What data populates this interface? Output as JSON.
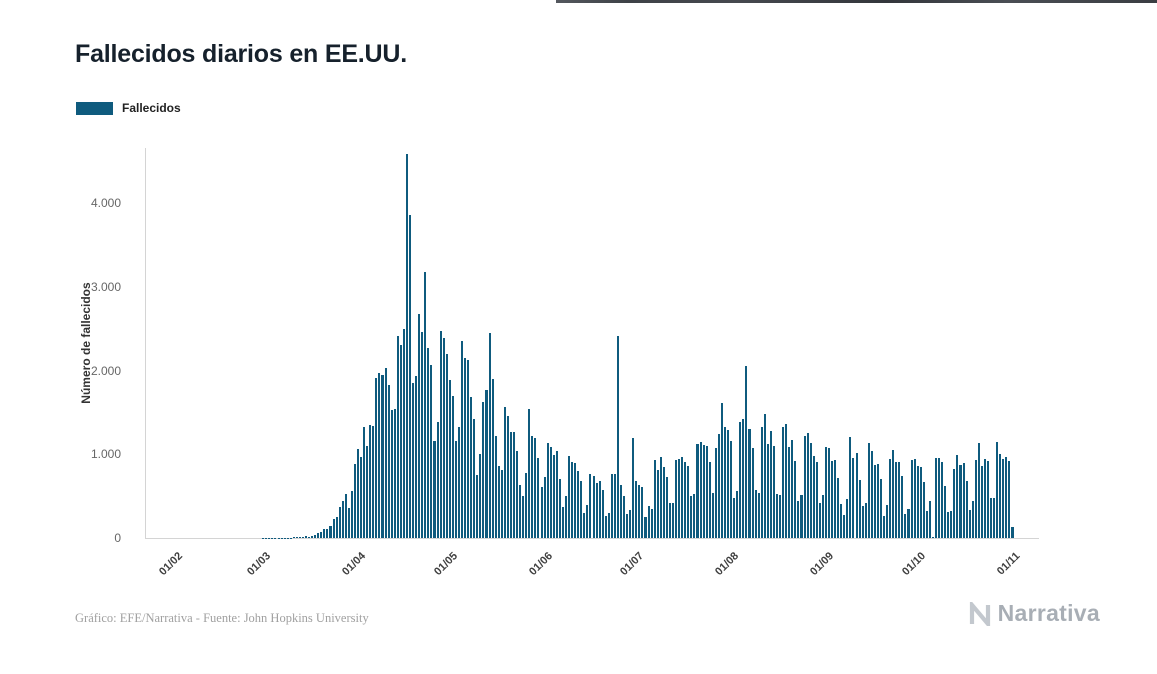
{
  "page": {
    "title": "Fallecidos diarios en EE.UU.",
    "credit": "Gráfico: EFE/Narrativa - Fuente: John Hopkins University",
    "brand": "Narrativa"
  },
  "legend": {
    "label": "Fallecidos",
    "color": "#0f5b7e"
  },
  "chart_data": {
    "type": "bar",
    "title": "Fallecidos diarios en EE.UU.",
    "ylabel": "Número de fallecidos",
    "xlabel": "",
    "grid": false,
    "legend_position": "top-left",
    "ylim": [
      0,
      4657
    ],
    "x_domain_days": 292,
    "y_ticks": [
      {
        "value": 0,
        "label": "0"
      },
      {
        "value": 1000,
        "label": "1.000"
      },
      {
        "value": 2000,
        "label": "2.000"
      },
      {
        "value": 3000,
        "label": "3.000"
      },
      {
        "value": 4000,
        "label": "4.000"
      }
    ],
    "x_ticks": [
      {
        "index": 9,
        "label": "01/02"
      },
      {
        "index": 38,
        "label": "01/03"
      },
      {
        "index": 69,
        "label": "01/04"
      },
      {
        "index": 99,
        "label": "01/05"
      },
      {
        "index": 130,
        "label": "01/06"
      },
      {
        "index": 160,
        "label": "01/07"
      },
      {
        "index": 191,
        "label": "01/08"
      },
      {
        "index": 222,
        "label": "01/09"
      },
      {
        "index": 252,
        "label": "01/10"
      },
      {
        "index": 283,
        "label": "01/11"
      }
    ],
    "series": [
      {
        "name": "Fallecidos",
        "color": "#0f5b7e",
        "values": [
          0,
          0,
          0,
          0,
          0,
          0,
          0,
          0,
          0,
          0,
          0,
          0,
          0,
          0,
          0,
          0,
          0,
          0,
          0,
          0,
          0,
          0,
          0,
          0,
          0,
          0,
          0,
          0,
          0,
          0,
          0,
          0,
          0,
          0,
          0,
          0,
          0,
          0,
          1,
          1,
          2,
          3,
          2,
          3,
          4,
          5,
          4,
          6,
          8,
          10,
          12,
          18,
          22,
          18,
          26,
          41,
          57,
          68,
          110,
          113,
          140,
          225,
          247,
          372,
          445,
          525,
          363,
          558,
          880,
          1059,
          968,
          1320,
          1104,
          1344,
          1342,
          1906,
          1973,
          1943,
          2035,
          1830,
          1528,
          1539,
          2408,
          2299,
          2494,
          4591,
          3857,
          1856,
          1939,
          2674,
          2458,
          3179,
          2266,
          2065,
          1157,
          1384,
          2470,
          2390,
          2201,
          1883,
          1691,
          1154,
          1324,
          2350,
          2144,
          2129,
          1687,
          1422,
          750,
          1008,
          1630,
          1772,
          2446,
          1898,
          1218,
          865,
          808,
          1568,
          1461,
          1263,
          1260,
          1035,
          638,
          500,
          774,
          1535,
          1223,
          1193,
          960,
          605,
          730,
          1134,
          1083,
          995,
          1036,
          709,
          373,
          497,
          979,
          906,
          892,
          802,
          683,
          302,
          389,
          770,
          740,
          655,
          683,
          577,
          268,
          294,
          767,
          765,
          2412,
          637,
          504,
          287,
          334,
          1199,
          684,
          636,
          614,
          254,
          384,
          352,
          933,
          811,
          964,
          849,
          730,
          421,
          417,
          937,
          941,
          963,
          904,
          860,
          504,
          528,
          1118,
          1143,
          1108,
          1096,
          906,
          532,
          1069,
          1240,
          1607,
          1320,
          1284,
          1157,
          474,
          557,
          1389,
          1423,
          2060,
          1300,
          1069,
          568,
          541,
          1324,
          1486,
          1128,
          1272,
          1096,
          526,
          512,
          1324,
          1356,
          1090,
          1172,
          924,
          441,
          512,
          1222,
          1259,
          1135,
          975,
          909,
          414,
          518,
          1083,
          1077,
          923,
          929,
          717,
          405,
          271,
          466,
          1208,
          961,
          1013,
          690,
          388,
          421,
          1135,
          1034,
          873,
          889,
          704,
          258,
          389,
          944,
          1056,
          904,
          907,
          742,
          292,
          344,
          932,
          942,
          857,
          852,
          666,
          323,
          446,
          12,
          959,
          951,
          907,
          625,
          309,
          323,
          822,
          989,
          868,
          899,
          686,
          340,
          445,
          929,
          1135,
          856,
          945,
          916,
          480,
          476,
          1147,
          1008,
          940,
          967,
          920,
          133
        ]
      }
    ]
  }
}
